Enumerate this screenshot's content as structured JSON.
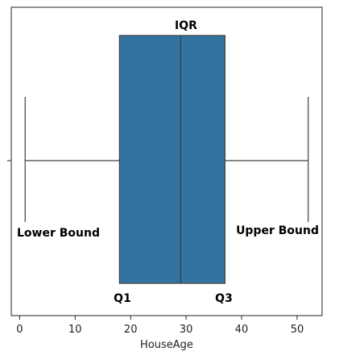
{
  "chart_data": {
    "type": "box",
    "xlabel": "HouseAge",
    "ylabel": "",
    "xlim": [
      -1.5,
      54.5
    ],
    "xticks": [
      0,
      10,
      20,
      30,
      40,
      50
    ],
    "tick_labels": [
      "0",
      "10",
      "20",
      "30",
      "40",
      "50"
    ],
    "grid": false,
    "box": {
      "whisker_low": 1,
      "q1": 18,
      "median": 29,
      "q3": 37,
      "whisker_high": 52
    },
    "colors": {
      "box_fill": "#3274a1",
      "line": "#3d3d3d",
      "axis": "#222222"
    },
    "annotations": {
      "iqr": "IQR",
      "lower_bound": "Lower Bound",
      "upper_bound": "Upper Bound",
      "q1": "Q1",
      "q3": "Q3"
    }
  }
}
